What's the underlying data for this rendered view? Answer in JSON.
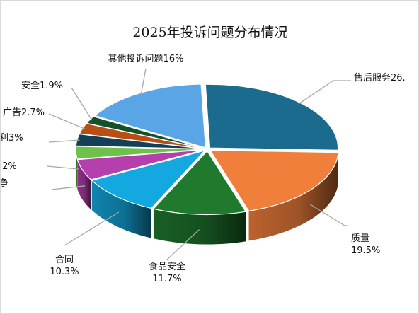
{
  "chart_data": {
    "type": "pie",
    "title": "2025年投诉问题分布情况",
    "slices": [
      {
        "name": "售后服务",
        "label": "售后服务26.",
        "pct_text": "",
        "value": 26.0,
        "color": "#1b6b8f"
      },
      {
        "name": "质量",
        "label": "质量",
        "pct_text": "19.5%",
        "value": 19.5,
        "color": "#f07f3c"
      },
      {
        "name": "食品安全",
        "label": "食品安全",
        "pct_text": "11.7%",
        "value": 11.7,
        "color": "#1f7a2e"
      },
      {
        "name": "合同",
        "label": "合同",
        "pct_text": "10.3%",
        "value": 10.3,
        "color": "#13a9e0"
      },
      {
        "name": "争",
        "label": "争",
        "pct_text": "",
        "value": 5.3,
        "color": "#b63fae"
      },
      {
        "name": ".2%",
        "label": ".2%",
        "pct_text": "",
        "value": 3.2,
        "color": "#6cc24a"
      },
      {
        "name": "利3%",
        "label": "利3%",
        "pct_text": "",
        "value": 3.0,
        "color": "#143f58"
      },
      {
        "name": "广告2.7%",
        "label": "广告2.7%",
        "pct_text": "",
        "value": 2.7,
        "color": "#b84e14"
      },
      {
        "name": "安全1.9%",
        "label": "安全1.9%",
        "pct_text": "",
        "value": 1.9,
        "color": "#14502a"
      },
      {
        "name": "其他投诉问题16%",
        "label": "其他投诉问题16%",
        "pct_text": "",
        "value": 16.0,
        "color": "#5aa5e6"
      }
    ],
    "legend": "none",
    "grid": false,
    "style": "3d-exploded"
  }
}
